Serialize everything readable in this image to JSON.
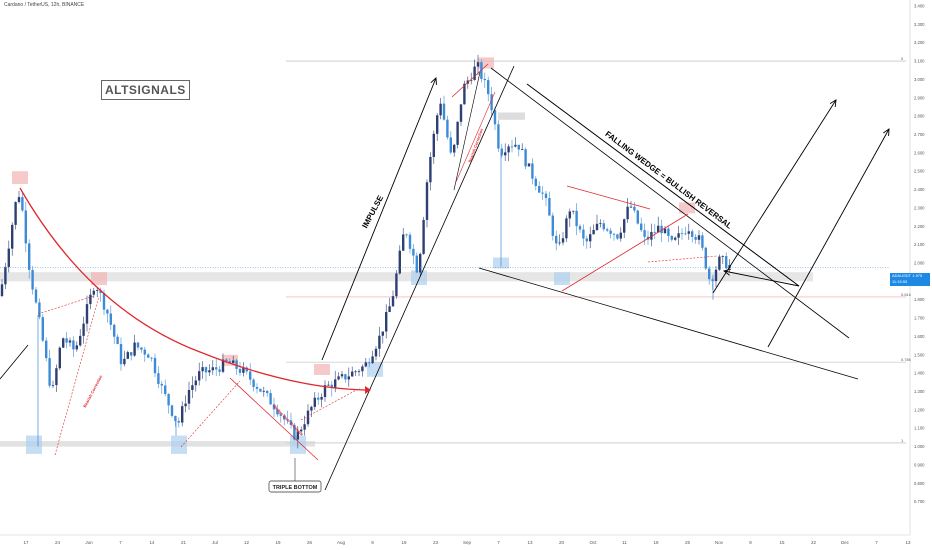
{
  "header": {
    "title": "Cardano / TetherUS, 12h, BINANCE"
  },
  "brand": {
    "label": "ALTSIGNALS"
  },
  "last_price": {
    "symbol": "ADAUSDT",
    "price": "1.975",
    "timer": "11:15:53"
  },
  "colors": {
    "up": "#2d3f73",
    "down": "#3d8bd6",
    "red": "#e0282e",
    "black": "#000000",
    "zone_grey": "#d5d5d5",
    "zone_blue": "#aed0f0",
    "zone_red": "#f2b3b3",
    "price_line": "#3d8bd6"
  },
  "chart_data": {
    "type": "candlestick",
    "title": "Cardano / TetherUS, 12h, BINANCE",
    "y_range": [
      0.6,
      3.4
    ],
    "y_ticks": [
      "3.400",
      "3.300",
      "3.200",
      "3.100",
      "3.000",
      "2.900",
      "2.800",
      "2.700",
      "2.600",
      "2.500",
      "2.400",
      "2.300",
      "2.200",
      "2.100",
      "2.000",
      "1.900",
      "1.800",
      "1.700",
      "1.600",
      "1.500",
      "1.400",
      "1.300",
      "1.200",
      "1.100",
      "1.000",
      "0.900",
      "0.800",
      "0.700"
    ],
    "x_ticks": [
      "17",
      "24",
      "Jun",
      "7",
      "14",
      "21",
      "Jul",
      "12",
      "19",
      "26",
      "Aug",
      "9",
      "16",
      "23",
      "Sep",
      "7",
      "13",
      "20",
      "Oct",
      "11",
      "18",
      "25",
      "Nov",
      "8",
      "15",
      "22",
      "Dec",
      "7",
      "13"
    ],
    "fib_levels": [
      {
        "label": "0",
        "value": 3.1
      },
      {
        "label": "0.618",
        "value": 1.815
      },
      {
        "label": "0.786",
        "value": 1.46
      },
      {
        "label": "1",
        "value": 1.02
      }
    ],
    "annotations": [
      {
        "text": "IMPULSE"
      },
      {
        "text": "FALLING WEDGE = BULLISH REVERSAL"
      },
      {
        "text": "TRIPLE BOTTOM"
      },
      {
        "text": "Bearish Correction"
      },
      {
        "text": "Wedge Bear Breakout"
      },
      {
        "text": "Bearish Correction"
      },
      {
        "text": "Bearish Correction"
      }
    ]
  }
}
